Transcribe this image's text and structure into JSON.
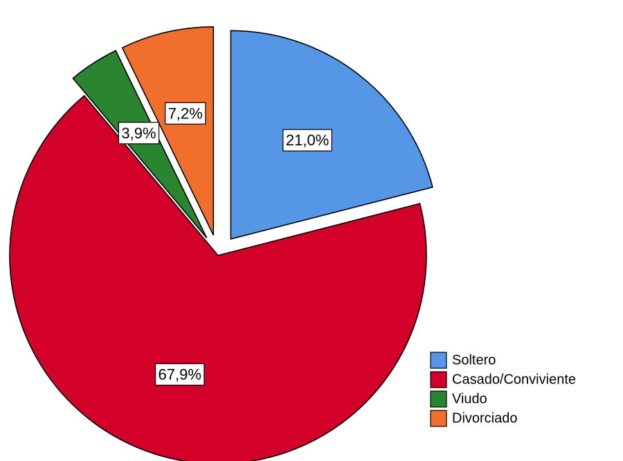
{
  "chart_data": {
    "type": "pie",
    "title": "",
    "legend_position": "bottom-right",
    "slices": [
      {
        "name": "Soltero",
        "value": 21.0,
        "label": "21,0%",
        "color": "#5596E6",
        "exploded": true
      },
      {
        "name": "Casado/Conviviente",
        "value": 67.9,
        "label": "67,9%",
        "color": "#D3002A",
        "exploded": false
      },
      {
        "name": "Viudo",
        "value": 3.9,
        "label": "3,9%",
        "color": "#2A8430",
        "exploded": true
      },
      {
        "name": "Divorciado",
        "value": 7.2,
        "label": "7,2%",
        "color": "#F26E2D",
        "exploded": true
      }
    ]
  }
}
